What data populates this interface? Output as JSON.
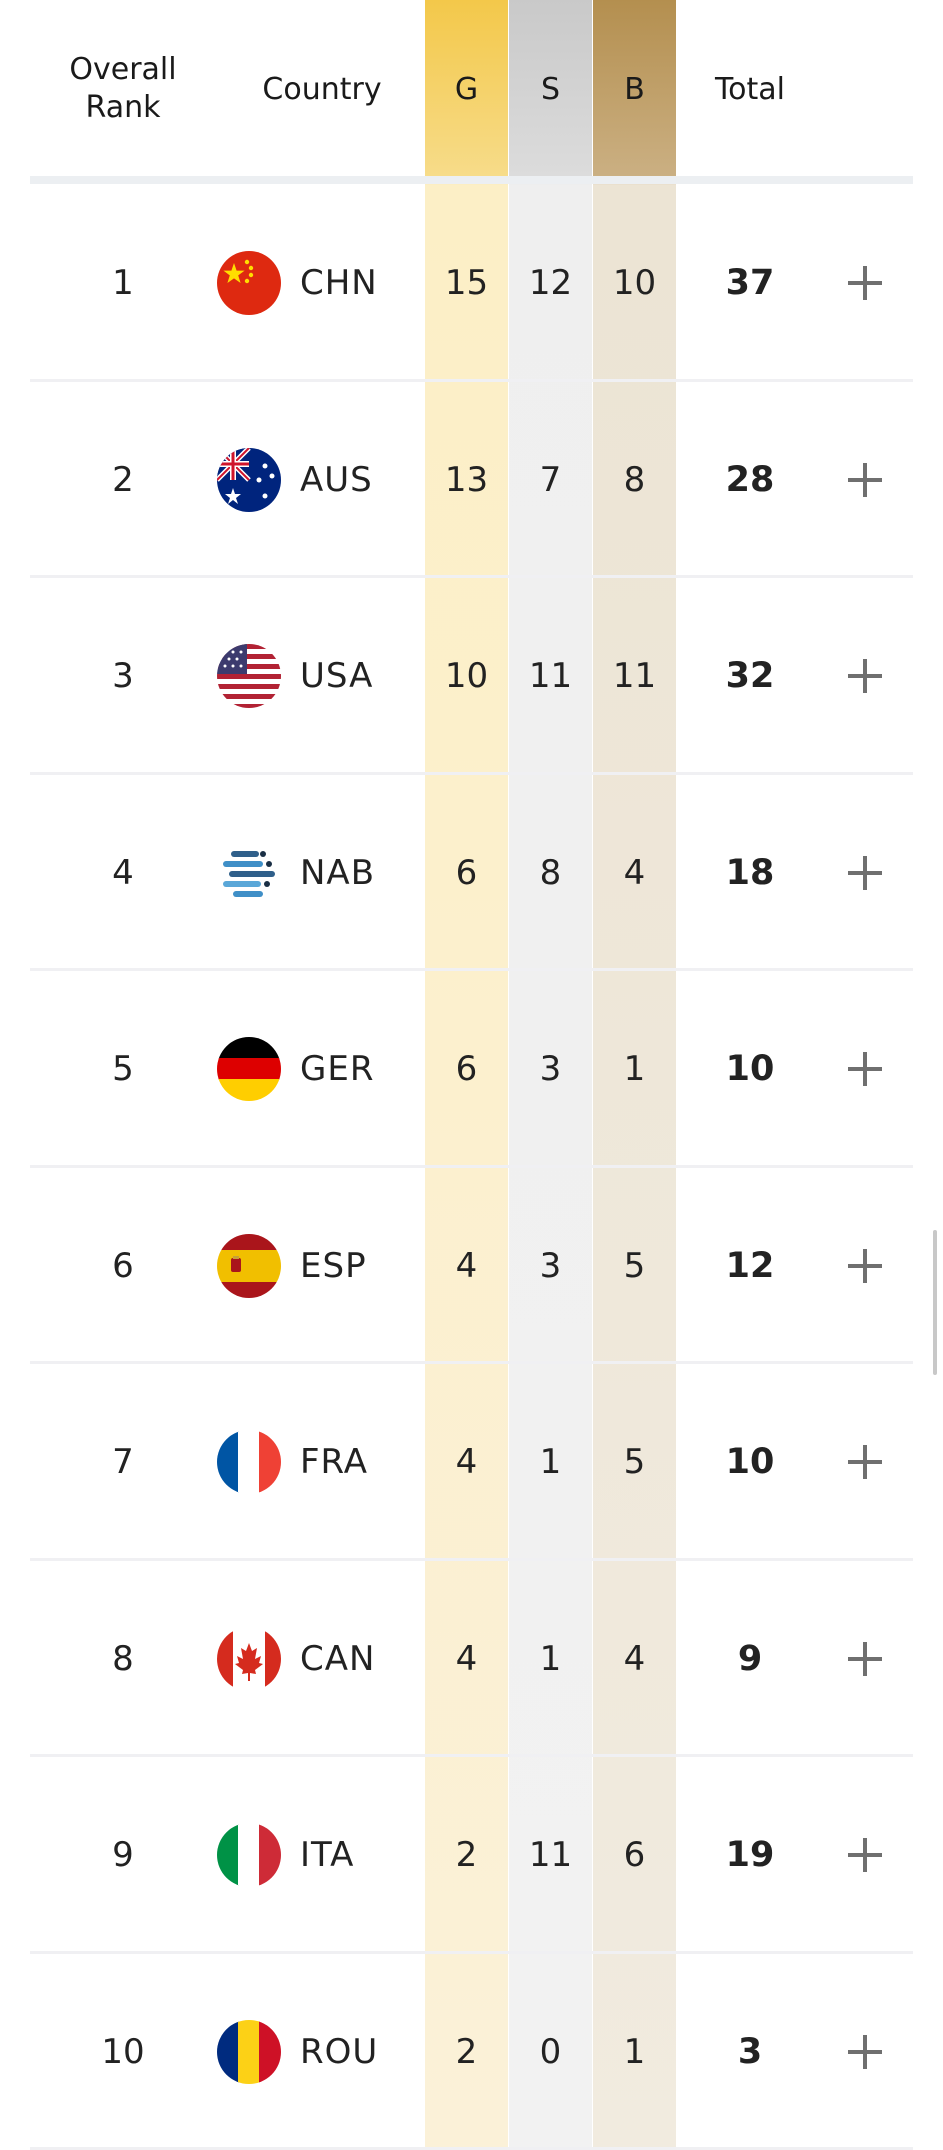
{
  "header": {
    "rank_label": "Overall\nRank",
    "country_label": "Country",
    "gold_label": "G",
    "silver_label": "S",
    "bronze_label": "B",
    "total_label": "Total"
  },
  "colors": {
    "gold": "#f3c84a",
    "silver": "#c9c9c9",
    "bronze": "#b48f4f"
  },
  "rows": [
    {
      "rank": "1",
      "code": "CHN",
      "flag": "china-flag-icon",
      "gold": "15",
      "silver": "12",
      "bronze": "10",
      "total": "37"
    },
    {
      "rank": "2",
      "code": "AUS",
      "flag": "australia-flag-icon",
      "gold": "13",
      "silver": "7",
      "bronze": "8",
      "total": "28"
    },
    {
      "rank": "3",
      "code": "USA",
      "flag": "usa-flag-icon",
      "gold": "10",
      "silver": "11",
      "bronze": "11",
      "total": "32"
    },
    {
      "rank": "4",
      "code": "NAB",
      "flag": "neutral-athletes-flag-icon",
      "gold": "6",
      "silver": "8",
      "bronze": "4",
      "total": "18"
    },
    {
      "rank": "5",
      "code": "GER",
      "flag": "germany-flag-icon",
      "gold": "6",
      "silver": "3",
      "bronze": "1",
      "total": "10"
    },
    {
      "rank": "6",
      "code": "ESP",
      "flag": "spain-flag-icon",
      "gold": "4",
      "silver": "3",
      "bronze": "5",
      "total": "12"
    },
    {
      "rank": "7",
      "code": "FRA",
      "flag": "france-flag-icon",
      "gold": "4",
      "silver": "1",
      "bronze": "5",
      "total": "10"
    },
    {
      "rank": "8",
      "code": "CAN",
      "flag": "canada-flag-icon",
      "gold": "4",
      "silver": "1",
      "bronze": "4",
      "total": "9"
    },
    {
      "rank": "9",
      "code": "ITA",
      "flag": "italy-flag-icon",
      "gold": "2",
      "silver": "11",
      "bronze": "6",
      "total": "19"
    },
    {
      "rank": "10",
      "code": "ROU",
      "flag": "romania-flag-icon",
      "gold": "2",
      "silver": "0",
      "bronze": "1",
      "total": "3"
    }
  ]
}
